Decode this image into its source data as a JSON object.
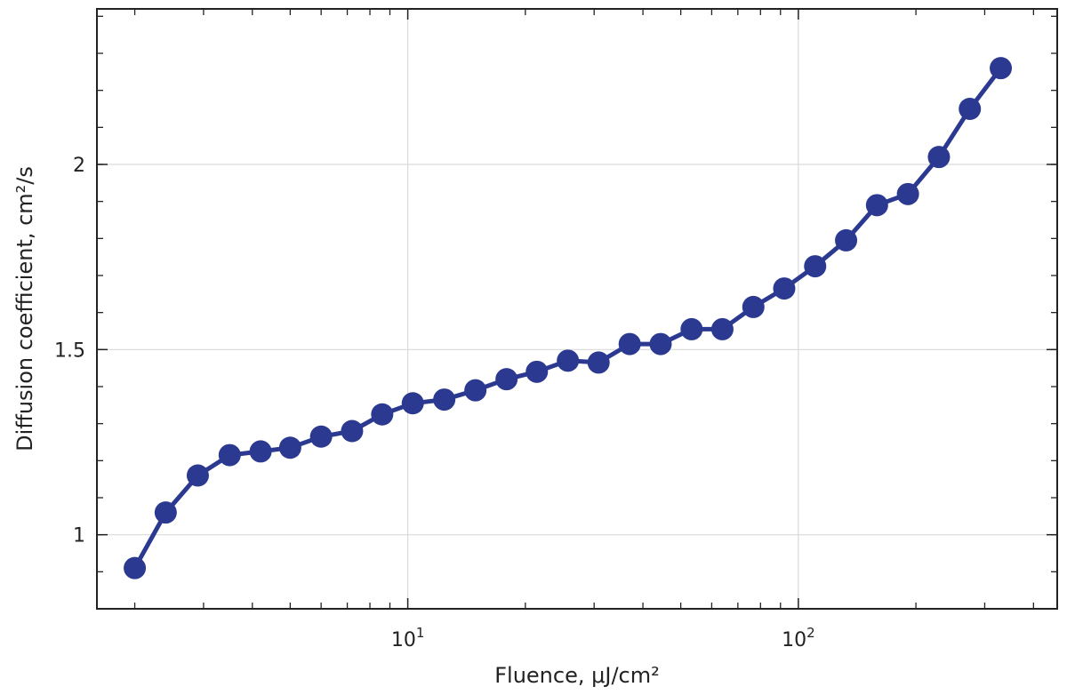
{
  "chart_data": {
    "type": "line",
    "title": "",
    "xlabel": "Fluence, μJ/cm²",
    "ylabel": "Diffusion coefficient, cm²/s",
    "x_scale": "log",
    "xlim": [
      1.6,
      460
    ],
    "ylim": [
      0.8,
      2.42
    ],
    "grid": true,
    "x_major_ticks": [
      {
        "value": 10,
        "base": "10",
        "exp": "1"
      },
      {
        "value": 100,
        "base": "10",
        "exp": "2"
      }
    ],
    "y_ticks": [
      {
        "value": 1,
        "label": "1"
      },
      {
        "value": 1.5,
        "label": "1.5"
      },
      {
        "value": 2,
        "label": "2"
      }
    ],
    "series": [
      {
        "color": "#2b3990",
        "marker": "circle",
        "points": [
          [
            2.0,
            0.91
          ],
          [
            2.4,
            1.06
          ],
          [
            2.9,
            1.16
          ],
          [
            3.5,
            1.215
          ],
          [
            4.2,
            1.225
          ],
          [
            5.0,
            1.235
          ],
          [
            6.0,
            1.265
          ],
          [
            7.2,
            1.28
          ],
          [
            8.6,
            1.325
          ],
          [
            10.3,
            1.355
          ],
          [
            12.4,
            1.365
          ],
          [
            14.9,
            1.39
          ],
          [
            17.9,
            1.42
          ],
          [
            21.4,
            1.44
          ],
          [
            25.7,
            1.47
          ],
          [
            30.8,
            1.465
          ],
          [
            37.0,
            1.515
          ],
          [
            44.4,
            1.515
          ],
          [
            53.3,
            1.555
          ],
          [
            63.9,
            1.555
          ],
          [
            76.7,
            1.615
          ],
          [
            92.0,
            1.665
          ],
          [
            110.4,
            1.725
          ],
          [
            132.5,
            1.795
          ],
          [
            159.0,
            1.89
          ],
          [
            190.8,
            1.92
          ],
          [
            229.0,
            2.02
          ],
          [
            274.8,
            2.15
          ],
          [
            329.8,
            2.26
          ]
        ]
      }
    ]
  }
}
